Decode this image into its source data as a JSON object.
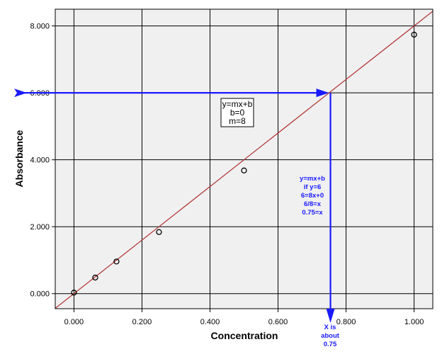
{
  "chart_data": {
    "type": "scatter",
    "xlabel": "Concentration",
    "ylabel": "Absorbance",
    "xlim": [
      -0.055,
      1.055
    ],
    "ylim": [
      -0.45,
      8.5
    ],
    "x_ticks": [
      0.0,
      0.2,
      0.4,
      0.6,
      0.8,
      1.0
    ],
    "y_ticks": [
      0.0,
      2.0,
      4.0,
      6.0,
      8.0
    ],
    "x_tick_labels": [
      "0.000",
      "0.200",
      "0.400",
      "0.600",
      "0.800",
      "1.000"
    ],
    "y_tick_labels": [
      "0.000",
      "2.000",
      "4.000",
      "6.000",
      "8.000"
    ],
    "grid": true,
    "points": [
      {
        "x": 0.0,
        "y": 0.03
      },
      {
        "x": 0.0625,
        "y": 0.48
      },
      {
        "x": 0.125,
        "y": 0.96
      },
      {
        "x": 0.25,
        "y": 1.84
      },
      {
        "x": 0.5,
        "y": 3.68
      },
      {
        "x": 1.0,
        "y": 7.74
      }
    ],
    "fit_line": {
      "slope": 8,
      "intercept": 0,
      "color": "#b03030"
    },
    "plot_background": "#f0f0f0",
    "point_color": "#000000",
    "annotations": {
      "equation_box": [
        "y=mx+b",
        "b=0",
        "m=8"
      ],
      "solution_steps": [
        "y=mx+b",
        "if y=6",
        "6=8x+0",
        "6/8=x",
        "0.75=x"
      ],
      "result_label": [
        "X is",
        "about",
        "0.75"
      ],
      "arrow_color": "#1a1aff",
      "target_y": 6,
      "target_x": 0.75
    }
  }
}
